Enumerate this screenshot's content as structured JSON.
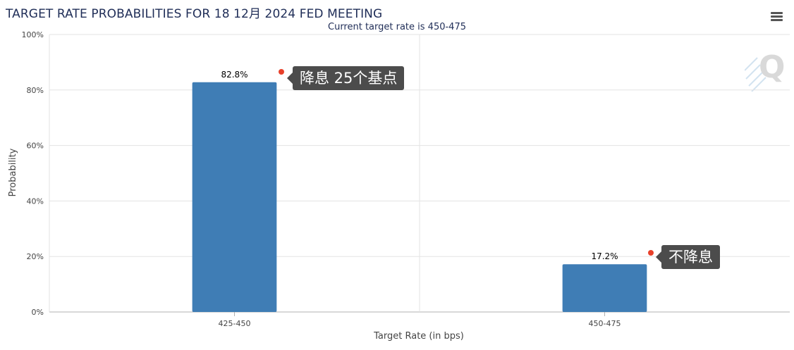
{
  "header": {
    "menu_icon": "hamburger-menu-icon"
  },
  "watermark": {
    "letter": "Q"
  },
  "colors": {
    "bar": "#3f7db5",
    "grid": "#e3e3e3",
    "callout_bg": "#4c4c4c",
    "callout_dot": "#e8402a",
    "title": "#1f2d57"
  },
  "chart_data": {
    "type": "bar",
    "title": "TARGET RATE PROBABILITIES FOR 18 12月 2024 FED MEETING",
    "subtitle": "Current target rate is 450-475",
    "xlabel": "Target Rate (in bps)",
    "ylabel": "Probability",
    "categories": [
      "425-450",
      "450-475"
    ],
    "values": [
      82.8,
      17.2
    ],
    "data_labels": [
      "82.8%",
      "17.2%"
    ],
    "ylim": [
      0,
      100
    ],
    "yticks": [
      0,
      20,
      40,
      60,
      80,
      100
    ],
    "ytick_labels": [
      "0%",
      "20%",
      "40%",
      "60%",
      "80%",
      "100%"
    ],
    "grid": true,
    "annotations": [
      "降息 25个基点",
      "不降息"
    ]
  }
}
